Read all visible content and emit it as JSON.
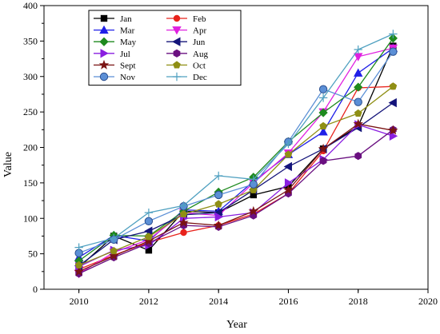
{
  "chart_data": {
    "type": "line",
    "title": "",
    "xlabel": "Year",
    "ylabel": "Value",
    "xlim": [
      2009,
      2020
    ],
    "ylim": [
      0,
      400
    ],
    "x_ticks": [
      2010,
      2012,
      2014,
      2016,
      2018,
      2020
    ],
    "y_ticks": [
      0,
      50,
      100,
      150,
      200,
      250,
      300,
      350,
      400
    ],
    "grid": false,
    "legend_position": "top-left",
    "legend_columns": 2,
    "x": [
      2010,
      2011,
      2012,
      2013,
      2014,
      2015,
      2016,
      2017,
      2018,
      2019
    ],
    "series": [
      {
        "name": "Jan",
        "color": "#000000",
        "marker": "square",
        "values": [
          31,
          75,
          55,
          110,
          108,
          133,
          145,
          198,
          230,
          343
        ]
      },
      {
        "name": "Feb",
        "color": "#e8231c",
        "marker": "circle",
        "values": [
          28,
          48,
          66,
          80,
          90,
          106,
          135,
          195,
          284,
          286
        ]
      },
      {
        "name": "Mar",
        "color": "#1f1fe8",
        "marker": "triangle-up",
        "values": [
          45,
          76,
          68,
          112,
          110,
          152,
          190,
          222,
          305,
          340
        ]
      },
      {
        "name": "Apr",
        "color": "#e020e0",
        "marker": "triangle-down",
        "values": [
          22,
          52,
          70,
          108,
          104,
          150,
          192,
          250,
          328,
          340
        ]
      },
      {
        "name": "May",
        "color": "#1e8a1e",
        "marker": "diamond",
        "values": [
          40,
          76,
          75,
          110,
          137,
          158,
          208,
          249,
          285,
          354
        ]
      },
      {
        "name": "Jun",
        "color": "#14147a",
        "marker": "triangle-left",
        "values": [
          33,
          70,
          82,
          105,
          108,
          140,
          173,
          198,
          228,
          263
        ]
      },
      {
        "name": "Jul",
        "color": "#8a1ee0",
        "marker": "triangle-right",
        "values": [
          32,
          55,
          62,
          100,
          102,
          108,
          150,
          183,
          232,
          216
        ]
      },
      {
        "name": "Aug",
        "color": "#6a1080",
        "marker": "hexagon",
        "values": [
          22,
          45,
          65,
          90,
          88,
          104,
          135,
          181,
          188,
          225
        ]
      },
      {
        "name": "Sept",
        "color": "#7a1414",
        "marker": "star",
        "values": [
          25,
          47,
          68,
          94,
          90,
          110,
          140,
          198,
          233,
          224
        ]
      },
      {
        "name": "Oct",
        "color": "#8f8f14",
        "marker": "pentagon",
        "values": [
          34,
          54,
          74,
          106,
          120,
          140,
          190,
          230,
          248,
          286
        ]
      },
      {
        "name": "Nov",
        "color": "#5b8fd6",
        "marker": "sphere",
        "values": [
          51,
          70,
          96,
          117,
          133,
          148,
          208,
          282,
          264,
          335
        ]
      },
      {
        "name": "Dec",
        "color": "#4fa0c0",
        "marker": "plus",
        "values": [
          59,
          72,
          108,
          118,
          160,
          155,
          205,
          270,
          338,
          360
        ]
      }
    ]
  }
}
